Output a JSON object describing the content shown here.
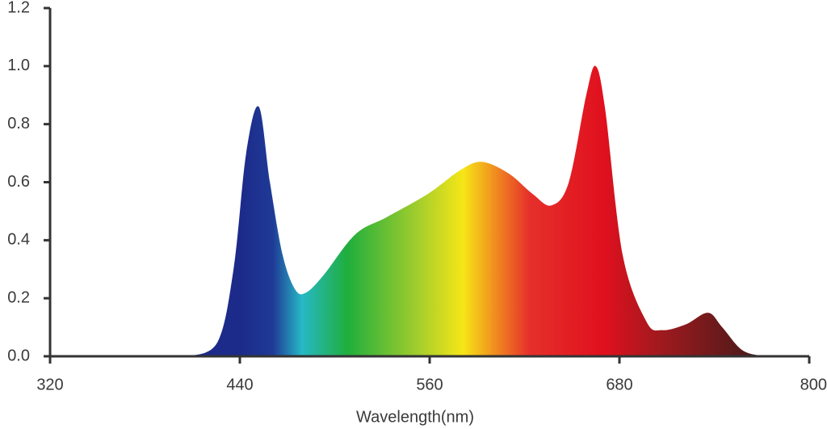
{
  "chart_data": {
    "type": "area",
    "xlabel": "Wavelength(nm)",
    "x": [
      408,
      426,
      436,
      444,
      452,
      459,
      467,
      475,
      482,
      493,
      513,
      533,
      559,
      579,
      593,
      610,
      625,
      637,
      648,
      659,
      665,
      671,
      682,
      697,
      707,
      722,
      736,
      745,
      758,
      773
    ],
    "values": [
      0,
      0.05,
      0.3,
      0.7,
      0.86,
      0.6,
      0.35,
      0.23,
      0.22,
      0.28,
      0.42,
      0.48,
      0.56,
      0.64,
      0.67,
      0.63,
      0.56,
      0.52,
      0.6,
      0.9,
      1.0,
      0.85,
      0.35,
      0.12,
      0.09,
      0.11,
      0.15,
      0.1,
      0.02,
      0
    ],
    "xlim": [
      320,
      800
    ],
    "xticks": [
      320,
      440,
      560,
      680,
      800
    ],
    "ylim": [
      0,
      1.2
    ],
    "yticks": [
      {
        "value": 0,
        "label": "0.0"
      },
      0.2,
      0.4,
      0.6,
      0.8,
      {
        "value": 1,
        "label": "1.0"
      },
      1.2
    ],
    "grid": false
  }
}
